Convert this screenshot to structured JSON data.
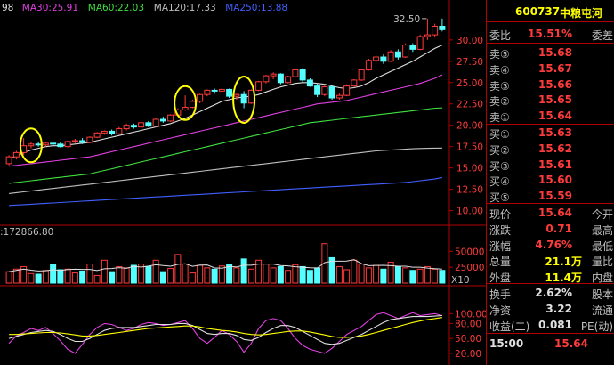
{
  "chart_data": [
    {
      "type": "candlestick",
      "title": "",
      "legend": [
        {
          "name": "98",
          "color": "#e0e0e0"
        },
        {
          "name": "MA30:25.91",
          "color": "#e040e0"
        },
        {
          "name": "MA60:22.03",
          "color": "#40e040"
        },
        {
          "name": "MA120:17.33",
          "color": "#c0c0c0"
        },
        {
          "name": "MA250:13.88",
          "color": "#4060ff"
        }
      ],
      "ylim": [
        8.6,
        32.8
      ],
      "yticks": [
        "30.00",
        "27.50",
        "25.00",
        "22.50",
        "20.00",
        "17.50",
        "15.00",
        "12.50",
        "10.00"
      ],
      "high_label": "32.50",
      "ohlc": [
        [
          15.5,
          16.5,
          15.3,
          16.3
        ],
        [
          16.3,
          17.0,
          16.0,
          16.8
        ],
        [
          16.8,
          18.5,
          16.5,
          17.6
        ],
        [
          17.6,
          18.0,
          17.3,
          17.8
        ],
        [
          17.8,
          18.1,
          17.5,
          17.7
        ],
        [
          17.7,
          18.0,
          17.5,
          17.9
        ],
        [
          17.9,
          18.1,
          17.6,
          17.8
        ],
        [
          17.8,
          18.0,
          17.4,
          17.5
        ],
        [
          17.5,
          18.2,
          17.4,
          18.1
        ],
        [
          18.1,
          18.4,
          17.9,
          18.2
        ],
        [
          18.2,
          18.5,
          17.8,
          18.0
        ],
        [
          18.0,
          18.7,
          17.9,
          18.6
        ],
        [
          18.6,
          19.2,
          18.5,
          19.1
        ],
        [
          19.1,
          19.4,
          18.9,
          19.3
        ],
        [
          19.3,
          19.5,
          18.8,
          19.0
        ],
        [
          19.0,
          19.8,
          18.9,
          19.6
        ],
        [
          19.6,
          20.2,
          19.4,
          20.0
        ],
        [
          20.0,
          20.2,
          19.6,
          19.8
        ],
        [
          19.8,
          20.4,
          19.7,
          20.3
        ],
        [
          20.3,
          20.5,
          19.8,
          19.9
        ],
        [
          19.9,
          20.8,
          19.8,
          20.7
        ],
        [
          20.7,
          21.0,
          20.3,
          20.5
        ],
        [
          20.5,
          21.3,
          20.4,
          21.2
        ],
        [
          21.2,
          22.0,
          21.0,
          21.8
        ],
        [
          21.8,
          23.5,
          21.7,
          22.1
        ],
        [
          22.1,
          23.0,
          22.0,
          22.8
        ],
        [
          22.8,
          23.7,
          22.6,
          23.6
        ],
        [
          23.6,
          24.2,
          23.4,
          24.1
        ],
        [
          24.1,
          24.3,
          23.7,
          24.0
        ],
        [
          24.0,
          24.4,
          23.8,
          24.2
        ],
        [
          24.2,
          24.3,
          23.2,
          23.4
        ],
        [
          23.4,
          23.7,
          23.0,
          23.6
        ],
        [
          23.6,
          24.0,
          22.0,
          22.6
        ],
        [
          22.6,
          24.2,
          22.5,
          24.1
        ],
        [
          24.1,
          25.2,
          24.0,
          25.1
        ],
        [
          25.1,
          25.9,
          24.9,
          25.8
        ],
        [
          25.8,
          26.2,
          25.4,
          26.0
        ],
        [
          26.0,
          26.1,
          24.8,
          25.0
        ],
        [
          25.0,
          25.8,
          24.9,
          25.7
        ],
        [
          25.7,
          26.6,
          25.6,
          26.5
        ],
        [
          26.5,
          26.7,
          25.0,
          25.3
        ],
        [
          25.3,
          25.5,
          24.5,
          24.6
        ],
        [
          24.6,
          24.9,
          23.3,
          23.6
        ],
        [
          23.6,
          24.8,
          23.4,
          24.5
        ],
        [
          24.5,
          24.7,
          23.0,
          23.2
        ],
        [
          23.2,
          23.7,
          23.0,
          23.5
        ],
        [
          23.5,
          24.8,
          23.4,
          24.6
        ],
        [
          24.6,
          25.4,
          24.5,
          25.3
        ],
        [
          25.3,
          26.6,
          25.2,
          26.5
        ],
        [
          26.5,
          27.8,
          26.4,
          27.6
        ],
        [
          27.6,
          28.2,
          27.3,
          28.0
        ],
        [
          28.0,
          28.3,
          27.2,
          27.5
        ],
        [
          27.5,
          28.8,
          27.4,
          28.6
        ],
        [
          28.6,
          28.9,
          27.7,
          28.0
        ],
        [
          28.0,
          29.6,
          27.9,
          29.4
        ],
        [
          29.4,
          29.6,
          28.6,
          28.9
        ],
        [
          28.9,
          30.6,
          28.8,
          30.4
        ],
        [
          30.4,
          32.5,
          30.0,
          30.6
        ],
        [
          30.6,
          31.9,
          30.3,
          31.6
        ],
        [
          31.6,
          32.5,
          31.0,
          31.2
        ]
      ],
      "ma": [
        {
          "name": "98",
          "color": "#e0e0e0",
          "values": [
            16.0,
            16.4,
            16.8,
            17.1,
            17.3,
            17.5,
            17.6,
            17.6,
            17.7,
            17.8,
            17.9,
            18.0,
            18.2,
            18.4,
            18.6,
            18.8,
            19.0,
            19.2,
            19.4,
            19.6,
            19.8,
            20.0,
            20.2,
            20.5,
            20.8,
            21.2,
            21.6,
            22.0,
            22.4,
            22.8,
            23.0,
            23.2,
            23.3,
            23.4,
            23.6,
            23.9,
            24.2,
            24.5,
            24.7,
            24.9,
            25.0,
            25.0,
            24.9,
            24.8,
            24.6,
            24.4,
            24.3,
            24.4,
            24.6,
            25.0,
            25.5,
            25.9,
            26.3,
            26.7,
            27.1,
            27.5,
            28.0,
            28.5,
            29.0,
            29.4
          ]
        },
        {
          "name": "MA30",
          "color": "#e040e0",
          "values": [
            15.2,
            15.3,
            15.4,
            15.5,
            15.6,
            15.7,
            15.8,
            15.9,
            16.0,
            16.1,
            16.2,
            16.3,
            16.5,
            16.7,
            16.9,
            17.1,
            17.3,
            17.5,
            17.7,
            17.9,
            18.1,
            18.3,
            18.5,
            18.7,
            18.9,
            19.1,
            19.3,
            19.5,
            19.7,
            19.9,
            20.1,
            20.3,
            20.5,
            20.7,
            20.9,
            21.1,
            21.3,
            21.5,
            21.7,
            21.9,
            22.1,
            22.3,
            22.5,
            22.6,
            22.7,
            22.8,
            22.9,
            23.1,
            23.3,
            23.5,
            23.7,
            23.9,
            24.1,
            24.3,
            24.5,
            24.7,
            24.9,
            25.2,
            25.5,
            25.9
          ]
        },
        {
          "name": "MA60",
          "color": "#40e040",
          "values": [
            13.2,
            13.3,
            13.4,
            13.5,
            13.6,
            13.7,
            13.8,
            13.9,
            14.0,
            14.1,
            14.2,
            14.3,
            14.5,
            14.7,
            14.9,
            15.1,
            15.3,
            15.5,
            15.7,
            15.9,
            16.1,
            16.3,
            16.5,
            16.7,
            16.9,
            17.1,
            17.3,
            17.5,
            17.7,
            17.9,
            18.1,
            18.3,
            18.5,
            18.7,
            18.9,
            19.1,
            19.3,
            19.5,
            19.7,
            19.9,
            20.1,
            20.3,
            20.4,
            20.5,
            20.6,
            20.7,
            20.8,
            20.9,
            21.0,
            21.1,
            21.2,
            21.3,
            21.4,
            21.5,
            21.6,
            21.7,
            21.8,
            21.9,
            22.0,
            22.03
          ]
        },
        {
          "name": "MA120",
          "color": "#c0c0c0",
          "values": [
            12.0,
            12.1,
            12.2,
            12.3,
            12.4,
            12.5,
            12.6,
            12.7,
            12.8,
            12.9,
            13.0,
            13.1,
            13.2,
            13.3,
            13.4,
            13.5,
            13.6,
            13.7,
            13.8,
            13.9,
            14.0,
            14.1,
            14.2,
            14.3,
            14.4,
            14.5,
            14.6,
            14.7,
            14.8,
            14.9,
            15.0,
            15.1,
            15.2,
            15.3,
            15.4,
            15.5,
            15.6,
            15.7,
            15.8,
            15.9,
            16.0,
            16.1,
            16.2,
            16.3,
            16.4,
            16.5,
            16.6,
            16.7,
            16.8,
            16.9,
            17.0,
            17.05,
            17.1,
            17.15,
            17.2,
            17.25,
            17.28,
            17.3,
            17.32,
            17.33
          ]
        },
        {
          "name": "MA250",
          "color": "#4060ff",
          "values": [
            10.6,
            10.65,
            10.7,
            10.75,
            10.8,
            10.85,
            10.9,
            10.95,
            11.0,
            11.05,
            11.1,
            11.15,
            11.2,
            11.25,
            11.3,
            11.35,
            11.4,
            11.45,
            11.5,
            11.55,
            11.6,
            11.65,
            11.7,
            11.75,
            11.8,
            11.85,
            11.9,
            11.95,
            12.0,
            12.05,
            12.1,
            12.15,
            12.2,
            12.25,
            12.3,
            12.35,
            12.4,
            12.45,
            12.5,
            12.55,
            12.6,
            12.65,
            12.7,
            12.75,
            12.8,
            12.85,
            12.9,
            12.95,
            13.0,
            13.05,
            13.1,
            13.15,
            13.2,
            13.25,
            13.3,
            13.4,
            13.5,
            13.6,
            13.7,
            13.88
          ]
        }
      ],
      "highlighted_bars": [
        3,
        24,
        32
      ]
    },
    {
      "type": "bar",
      "title": ":172866.80",
      "ylim": [
        0,
        70000
      ],
      "yticks": [
        "50000",
        "25000"
      ],
      "unit": "X10",
      "values": [
        18000,
        22000,
        26000,
        15000,
        14000,
        20000,
        30000,
        21000,
        22000,
        16000,
        19000,
        30000,
        12000,
        36000,
        18000,
        26000,
        24000,
        28000,
        30000,
        26000,
        36000,
        18000,
        23000,
        45000,
        30000,
        16000,
        28000,
        24000,
        22000,
        27000,
        30000,
        24000,
        38000,
        22000,
        36000,
        30000,
        24000,
        26000,
        20000,
        29000,
        26000,
        20000,
        24000,
        62000,
        40000,
        26000,
        21000,
        36000,
        30000,
        24000,
        28000,
        22000,
        33000,
        26000,
        24000,
        20000,
        22000,
        26000,
        22000,
        20000
      ]
    },
    {
      "type": "line",
      "title": "",
      "ylim": [
        0,
        140
      ],
      "yticks": [
        "100.00",
        "80.00",
        "50.00",
        "20.00"
      ],
      "series": [
        {
          "color": "#e040e0",
          "values": [
            40,
            55,
            62,
            70,
            66,
            72,
            60,
            45,
            28,
            20,
            38,
            58,
            72,
            80,
            78,
            72,
            66,
            70,
            78,
            82,
            80,
            76,
            78,
            82,
            86,
            70,
            50,
            40,
            52,
            66,
            58,
            44,
            22,
            40,
            70,
            86,
            90,
            86,
            70,
            50,
            36,
            28,
            24,
            20,
            30,
            44,
            58,
            66,
            74,
            86,
            98,
            102,
            96,
            90,
            96,
            102,
            96,
            98,
            100,
            96
          ]
        },
        {
          "color": "#e0e0e0",
          "values": [
            50,
            54,
            58,
            62,
            64,
            66,
            64,
            58,
            50,
            44,
            44,
            50,
            58,
            66,
            70,
            72,
            72,
            72,
            74,
            76,
            78,
            78,
            78,
            80,
            80,
            76,
            68,
            60,
            58,
            60,
            60,
            56,
            48,
            46,
            52,
            62,
            70,
            76,
            76,
            72,
            64,
            56,
            48,
            40,
            38,
            40,
            46,
            52,
            58,
            66,
            74,
            82,
            88,
            90,
            92,
            94,
            94,
            94,
            95,
            96
          ]
        },
        {
          "color": "#ffff00",
          "values": [
            58,
            58,
            59,
            60,
            61,
            62,
            62,
            61,
            59,
            57,
            55,
            55,
            56,
            58,
            60,
            62,
            64,
            66,
            68,
            70,
            71,
            72,
            73,
            74,
            75,
            75,
            73,
            70,
            68,
            66,
            65,
            63,
            60,
            58,
            57,
            58,
            60,
            62,
            64,
            65,
            65,
            63,
            60,
            57,
            54,
            52,
            52,
            53,
            55,
            58,
            62,
            66,
            70,
            74,
            78,
            82,
            85,
            88,
            90,
            92
          ]
        }
      ]
    }
  ],
  "quote": {
    "code": "600737",
    "name": "中粮屯河",
    "ratio_label": "委比",
    "ratio": "15.51%",
    "diff_label": "委差",
    "sells": [
      {
        "label": "卖⑤",
        "price": "15.68"
      },
      {
        "label": "卖④",
        "price": "15.67"
      },
      {
        "label": "卖③",
        "price": "15.66"
      },
      {
        "label": "卖②",
        "price": "15.65"
      },
      {
        "label": "卖①",
        "price": "15.64"
      }
    ],
    "buys": [
      {
        "label": "买①",
        "price": "15.63"
      },
      {
        "label": "买②",
        "price": "15.62"
      },
      {
        "label": "买③",
        "price": "15.61"
      },
      {
        "label": "买④",
        "price": "15.60"
      },
      {
        "label": "买⑤",
        "price": "15.59"
      }
    ],
    "stats": [
      {
        "label": "现价",
        "value": "15.64",
        "extra": "今开",
        "cls": "red"
      },
      {
        "label": "涨跌",
        "value": "0.71",
        "extra": "最高",
        "cls": "red"
      },
      {
        "label": "涨幅",
        "value": "4.76%",
        "extra": "最低",
        "cls": "red"
      },
      {
        "label": "总量",
        "value": "21.1万",
        "extra": "量比",
        "cls": "yel"
      },
      {
        "label": "外盘",
        "value": "11.4万",
        "extra": "内盘",
        "cls": "red"
      }
    ],
    "stats2": [
      {
        "label": "换手",
        "value": "2.62%",
        "extra": "股本",
        "cls": "wht"
      },
      {
        "label": "净资",
        "value": "3.22",
        "extra": "流通",
        "cls": "wht"
      },
      {
        "label": "收益(二)",
        "value": "0.081",
        "extra": "PE(动)",
        "cls": "wht"
      }
    ],
    "time": "15:00",
    "last": "15.64"
  }
}
